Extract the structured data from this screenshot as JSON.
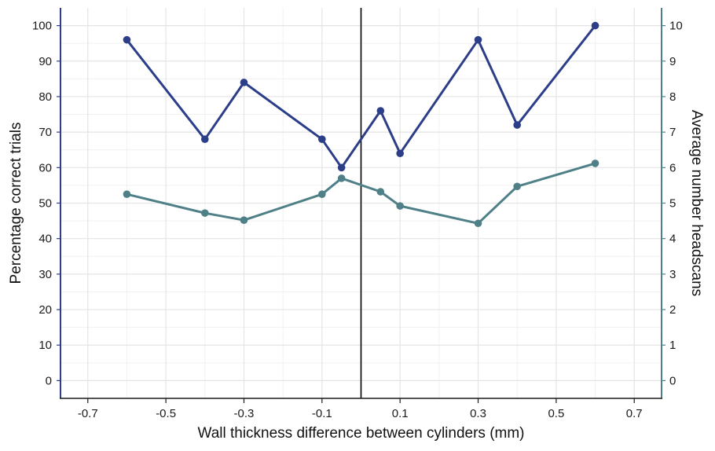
{
  "chart_data": {
    "type": "line",
    "title": "",
    "xlabel": "Wall thickness difference between cylinders (mm)",
    "ylabel_left": "Percentage correct trials",
    "ylabel_right": "Average number headscans",
    "xlim": [
      -0.77,
      0.77
    ],
    "ylim_left": [
      -5,
      105
    ],
    "ylim_right": [
      -0.5,
      10.5
    ],
    "x_ticks": [
      -0.7,
      -0.5,
      -0.3,
      -0.1,
      0.1,
      0.3,
      0.5,
      0.7
    ],
    "x_tick_labels": [
      "-0.7",
      "-0.5",
      "-0.3",
      "-0.1",
      "0.1",
      "0.3",
      "0.5",
      "0.7"
    ],
    "y_left_ticks": [
      0,
      10,
      20,
      30,
      40,
      50,
      60,
      70,
      80,
      90,
      100
    ],
    "y_left_tick_labels": [
      "0",
      "10",
      "20",
      "30",
      "40",
      "50",
      "60",
      "70",
      "80",
      "90",
      "100"
    ],
    "y_right_ticks": [
      0,
      1,
      2,
      3,
      4,
      5,
      6,
      7,
      8,
      9,
      10
    ],
    "y_right_tick_labels": [
      "0",
      "1",
      "2",
      "3",
      "4",
      "5",
      "6",
      "7",
      "8",
      "9",
      "10"
    ],
    "reference_line_x": 0,
    "grid": true,
    "series": [
      {
        "axis": "left",
        "color": "#2c3e87",
        "x": [
          -0.6,
          -0.4,
          -0.3,
          -0.1,
          -0.05,
          0.05,
          0.1,
          0.3,
          0.4,
          0.6
        ],
        "values": [
          96,
          68,
          84,
          68,
          60,
          76,
          64,
          96,
          72,
          100
        ]
      },
      {
        "axis": "right",
        "color": "#4f8088",
        "x": [
          -0.6,
          -0.4,
          -0.3,
          -0.1,
          -0.05,
          0.05,
          0.1,
          0.3,
          0.4,
          0.6
        ],
        "values": [
          5.25,
          4.72,
          4.52,
          5.25,
          5.7,
          5.32,
          4.92,
          4.43,
          5.47,
          6.12
        ]
      }
    ]
  }
}
